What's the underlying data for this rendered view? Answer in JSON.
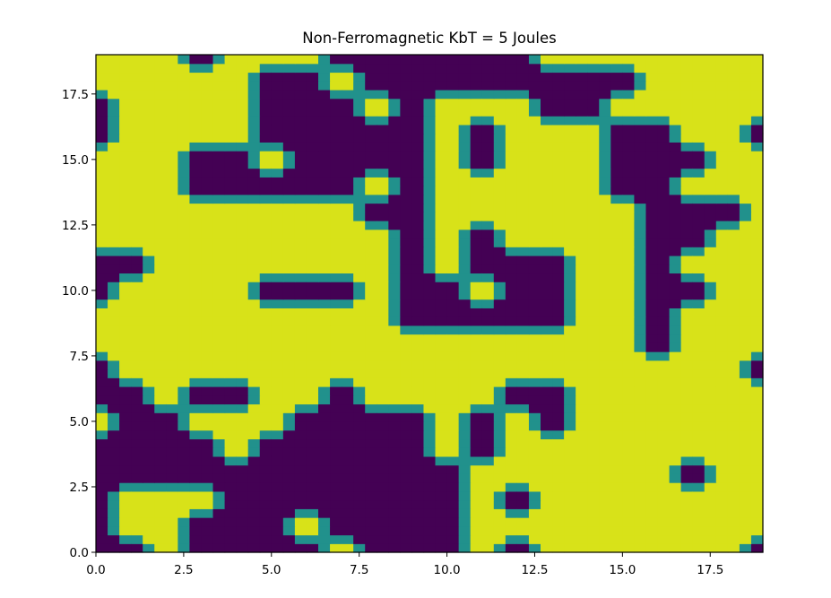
{
  "chart_data": {
    "type": "heatmap",
    "title": "Non-Ferromagnetic KbT = 5 Joules",
    "xlabel": "",
    "ylabel": "",
    "xlim": [
      0,
      19
    ],
    "ylim": [
      0,
      19
    ],
    "xticks": [
      0.0,
      2.5,
      5.0,
      7.5,
      10.0,
      12.5,
      15.0,
      17.5
    ],
    "yticks": [
      0.0,
      2.5,
      5.0,
      7.5,
      10.0,
      12.5,
      15.0,
      17.5
    ],
    "xtick_labels": [
      "0.0",
      "2.5",
      "5.0",
      "7.5",
      "10.0",
      "12.5",
      "15.0",
      "17.5"
    ],
    "ytick_labels": [
      "0.0",
      "2.5",
      "5.0",
      "7.5",
      "10.0",
      "12.5",
      "15.0",
      "17.5"
    ],
    "value_range": [
      -1,
      1
    ],
    "colormap": "viridis",
    "colors": {
      "-1": "#440154",
      "0": "#21918c",
      "1": "#d8e219"
    },
    "grid_rows_note": "row index 0 = y 0, values are spins (+1 / -1)",
    "z": [
      [
        -1,
        -1,
        1,
        -1,
        -1,
        -1,
        -1,
        1,
        -1,
        -1,
        -1,
        1,
        -1,
        1,
        1,
        1,
        1,
        1,
        1,
        -1
      ],
      [
        -1,
        1,
        1,
        -1,
        -1,
        -1,
        1,
        -1,
        -1,
        -1,
        -1,
        1,
        1,
        1,
        1,
        1,
        1,
        1,
        1,
        1
      ],
      [
        -1,
        1,
        1,
        1,
        -1,
        -1,
        -1,
        -1,
        -1,
        -1,
        -1,
        1,
        -1,
        1,
        1,
        1,
        1,
        1,
        1,
        1
      ],
      [
        -1,
        -1,
        -1,
        -1,
        -1,
        -1,
        -1,
        -1,
        -1,
        -1,
        -1,
        1,
        1,
        1,
        1,
        1,
        1,
        -1,
        1,
        1
      ],
      [
        -1,
        -1,
        -1,
        -1,
        1,
        -1,
        -1,
        -1,
        -1,
        -1,
        1,
        -1,
        1,
        1,
        1,
        1,
        1,
        1,
        1,
        1
      ],
      [
        1,
        -1,
        -1,
        1,
        1,
        1,
        -1,
        -1,
        -1,
        -1,
        1,
        -1,
        1,
        -1,
        1,
        1,
        1,
        1,
        1,
        1
      ],
      [
        -1,
        -1,
        1,
        -1,
        -1,
        1,
        1,
        -1,
        1,
        1,
        1,
        1,
        -1,
        -1,
        1,
        1,
        1,
        1,
        1,
        1
      ],
      [
        -1,
        1,
        1,
        1,
        1,
        1,
        1,
        1,
        1,
        1,
        1,
        1,
        1,
        1,
        1,
        1,
        1,
        1,
        1,
        -1
      ],
      [
        1,
        1,
        1,
        1,
        1,
        1,
        1,
        1,
        1,
        1,
        1,
        1,
        1,
        1,
        1,
        1,
        -1,
        1,
        1,
        1
      ],
      [
        1,
        1,
        1,
        1,
        1,
        1,
        1,
        1,
        1,
        -1,
        -1,
        -1,
        -1,
        -1,
        1,
        1,
        -1,
        1,
        1,
        1
      ],
      [
        -1,
        1,
        1,
        1,
        1,
        -1,
        -1,
        -1,
        1,
        -1,
        -1,
        1,
        -1,
        -1,
        1,
        1,
        -1,
        -1,
        1,
        1
      ],
      [
        -1,
        -1,
        1,
        1,
        1,
        1,
        1,
        1,
        1,
        -1,
        1,
        -1,
        -1,
        -1,
        1,
        1,
        -1,
        1,
        1,
        1
      ],
      [
        1,
        1,
        1,
        1,
        1,
        1,
        1,
        1,
        1,
        -1,
        1,
        -1,
        1,
        1,
        1,
        1,
        -1,
        -1,
        1,
        1
      ],
      [
        1,
        1,
        1,
        1,
        1,
        1,
        1,
        1,
        -1,
        -1,
        1,
        1,
        1,
        1,
        1,
        1,
        -1,
        -1,
        -1,
        1
      ],
      [
        1,
        1,
        1,
        -1,
        -1,
        -1,
        -1,
        -1,
        1,
        -1,
        1,
        1,
        1,
        1,
        1,
        -1,
        -1,
        1,
        1,
        1
      ],
      [
        1,
        1,
        1,
        -1,
        -1,
        1,
        -1,
        -1,
        -1,
        -1,
        1,
        -1,
        1,
        1,
        1,
        -1,
        -1,
        -1,
        1,
        1
      ],
      [
        -1,
        1,
        1,
        1,
        1,
        -1,
        -1,
        -1,
        -1,
        -1,
        1,
        -1,
        1,
        1,
        1,
        -1,
        -1,
        1,
        1,
        -1
      ],
      [
        -1,
        1,
        1,
        1,
        1,
        -1,
        -1,
        -1,
        1,
        -1,
        1,
        1,
        1,
        -1,
        -1,
        1,
        1,
        1,
        1,
        1
      ],
      [
        1,
        1,
        1,
        1,
        1,
        -1,
        -1,
        1,
        -1,
        -1,
        -1,
        -1,
        -1,
        -1,
        -1,
        -1,
        1,
        1,
        1,
        1
      ],
      [
        1,
        1,
        1,
        -1,
        1,
        1,
        1,
        -1,
        -1,
        -1,
        -1,
        -1,
        -1,
        1,
        1,
        1,
        1,
        1,
        1,
        1
      ]
    ]
  }
}
